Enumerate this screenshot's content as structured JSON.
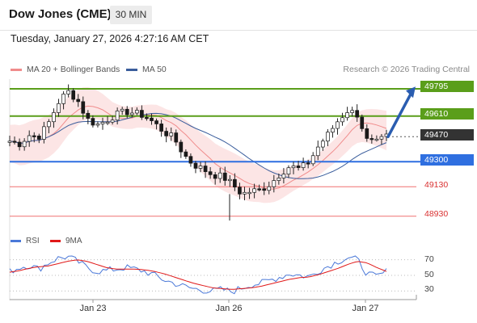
{
  "header": {
    "title": "Dow Jones (CME)",
    "timeframe": "30 MIN"
  },
  "datetime": "Tuesday, January 27, 2026 4:27:16 AM CET",
  "legend": {
    "bollinger_label": "MA 20 + Bollinger Bands",
    "ma50_label": "MA 50",
    "bollinger_color": "#f08c8c",
    "ma50_color": "#3a5d9c"
  },
  "copyright": "Research © 2026 Trading Central",
  "price_levels": [
    {
      "value": "49795",
      "kind": "resistance",
      "color": "#5a9e1a"
    },
    {
      "value": "49610",
      "kind": "resistance",
      "color": "#5a9e1a"
    },
    {
      "value": "49470",
      "kind": "last",
      "color": "#333333"
    },
    {
      "value": "49300",
      "kind": "pivot",
      "color": "#2f6fe0"
    },
    {
      "value": "49130",
      "kind": "support",
      "color": "#d93030"
    },
    {
      "value": "48930",
      "kind": "support",
      "color": "#d93030"
    }
  ],
  "rsi_legend": {
    "rsi_label": "RSI",
    "ma_label": "9MA",
    "rsi_color": "#4a78d8",
    "ma_color": "#e01818"
  },
  "rsi_ticks": [
    "70",
    "50",
    "30"
  ],
  "x_labels": [
    "Jan 23",
    "Jan 26",
    "Jan 27"
  ],
  "arrow_color": "#2a5db0",
  "chart_data": {
    "type": "candlestick",
    "ylim": [
      48890,
      49850
    ],
    "levels": [
      49795,
      49610,
      49470,
      49300,
      49130,
      48930
    ],
    "close_path": [
      49440,
      49420,
      49480,
      49470,
      49560,
      49700,
      49780,
      49720,
      49590,
      49550,
      49580,
      49620,
      49640,
      49630,
      49610,
      49560,
      49500,
      49460,
      49350,
      49280,
      49250,
      49210,
      49200,
      49150,
      49080,
      49100,
      49110,
      49150,
      49220,
      49270,
      49250,
      49300,
      49410,
      49490,
      49580,
      49650,
      49620,
      49440,
      49430,
      49470
    ],
    "rsi_ylim": [
      20,
      80
    ],
    "rsi_path": [
      55,
      60,
      63,
      58,
      66,
      72,
      74,
      68,
      60,
      55,
      56,
      58,
      60,
      58,
      55,
      50,
      44,
      40,
      36,
      33,
      31,
      30,
      32,
      29,
      34,
      38,
      40,
      44,
      48,
      52,
      50,
      48,
      56,
      62,
      68,
      73,
      70,
      52,
      48,
      55
    ],
    "rsi_ma_path": [
      54,
      56,
      59,
      61,
      62,
      65,
      68,
      70,
      68,
      64,
      60,
      58,
      58,
      58,
      57,
      55,
      52,
      48,
      44,
      40,
      37,
      34,
      33,
      32,
      33,
      34,
      36,
      39,
      42,
      45,
      47,
      48,
      51,
      55,
      59,
      64,
      68,
      66,
      60,
      55
    ]
  }
}
